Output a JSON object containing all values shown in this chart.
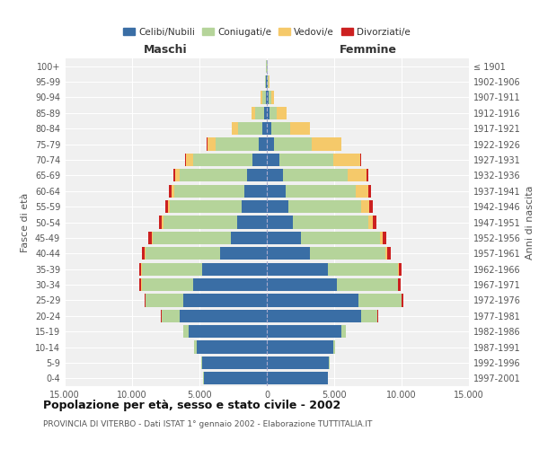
{
  "age_groups": [
    "0-4",
    "5-9",
    "10-14",
    "15-19",
    "20-24",
    "25-29",
    "30-34",
    "35-39",
    "40-44",
    "45-49",
    "50-54",
    "55-59",
    "60-64",
    "65-69",
    "70-74",
    "75-79",
    "80-84",
    "85-89",
    "90-94",
    "95-99",
    "100+"
  ],
  "birth_years": [
    "1997-2001",
    "1992-1996",
    "1987-1991",
    "1982-1986",
    "1977-1981",
    "1972-1976",
    "1967-1971",
    "1962-1966",
    "1957-1961",
    "1952-1956",
    "1947-1951",
    "1942-1946",
    "1937-1941",
    "1932-1936",
    "1927-1931",
    "1922-1926",
    "1917-1921",
    "1912-1916",
    "1907-1911",
    "1902-1906",
    "≤ 1901"
  ],
  "maschi": {
    "celibi": [
      4700,
      4800,
      5200,
      5800,
      6500,
      6200,
      5500,
      4800,
      3500,
      2700,
      2200,
      1900,
      1700,
      1450,
      1050,
      600,
      350,
      200,
      100,
      50,
      20
    ],
    "coniugati": [
      30,
      50,
      200,
      400,
      1300,
      2800,
      3800,
      4500,
      5500,
      5800,
      5500,
      5300,
      5200,
      5000,
      4400,
      3200,
      1800,
      700,
      250,
      80,
      30
    ],
    "vedovi": [
      1,
      2,
      2,
      5,
      5,
      10,
      15,
      20,
      40,
      60,
      80,
      120,
      200,
      350,
      550,
      600,
      450,
      250,
      100,
      30,
      10
    ],
    "divorziati": [
      2,
      3,
      5,
      10,
      30,
      70,
      120,
      180,
      210,
      230,
      230,
      200,
      180,
      120,
      80,
      40,
      25,
      15,
      10,
      5,
      2
    ]
  },
  "femmine": {
    "nubili": [
      4500,
      4600,
      4900,
      5500,
      7000,
      6800,
      5200,
      4500,
      3200,
      2500,
      1900,
      1600,
      1400,
      1200,
      900,
      500,
      300,
      200,
      100,
      50,
      20
    ],
    "coniugate": [
      20,
      40,
      150,
      350,
      1200,
      3200,
      4500,
      5200,
      5600,
      5900,
      5600,
      5400,
      5200,
      4800,
      4000,
      2800,
      1400,
      550,
      200,
      70,
      25
    ],
    "vedove": [
      2,
      3,
      5,
      10,
      20,
      30,
      60,
      100,
      150,
      200,
      350,
      600,
      900,
      1400,
      2000,
      2200,
      1500,
      700,
      250,
      60,
      15
    ],
    "divorziate": [
      2,
      3,
      5,
      15,
      40,
      100,
      160,
      200,
      240,
      270,
      280,
      250,
      220,
      150,
      100,
      50,
      30,
      20,
      10,
      5,
      2
    ]
  },
  "colors": {
    "celibi": "#3a6ea5",
    "coniugati": "#b5d49a",
    "vedovi": "#f5c96a",
    "divorziati": "#cc2020"
  },
  "xlim": 15000,
  "title": "Popolazione per età, sesso e stato civile - 2002",
  "subtitle": "PROVINCIA DI VITERBO - Dati ISTAT 1° gennaio 2002 - Elaborazione TUTTITALIA.IT",
  "xlabel_left": "Maschi",
  "xlabel_right": "Femmine",
  "ylabel_left": "Fasce di età",
  "ylabel_right": "Anni di nascita",
  "background_color": "#f0f0f0",
  "legend_labels": [
    "Celibi/Nubili",
    "Coniugati/e",
    "Vedovi/e",
    "Divorziati/e"
  ]
}
